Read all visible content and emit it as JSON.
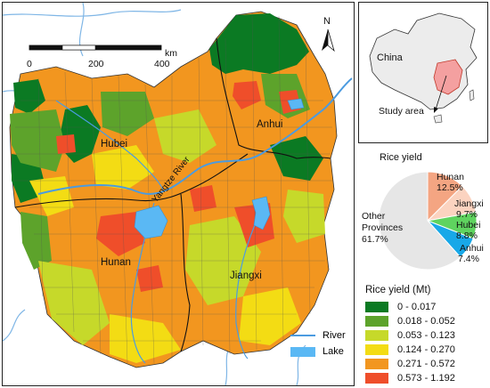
{
  "map": {
    "scale_bar": {
      "ticks": [
        "0",
        "200",
        "400"
      ],
      "unit": "km"
    },
    "north_label": "N",
    "provinces": [
      {
        "name": "Hubei"
      },
      {
        "name": "Anhui"
      },
      {
        "name": "Hunan"
      },
      {
        "name": "Jiangxi"
      }
    ],
    "river_label": "Yangtze River"
  },
  "inset": {
    "country_label": "China",
    "study_label": "Study area"
  },
  "chart_data": {
    "type": "pie",
    "title": "Rice yield",
    "slices": [
      {
        "name": "Hunan",
        "value": 12.5,
        "label": "12.5%",
        "color": "#f4a582"
      },
      {
        "name": "Jiangxi",
        "value": 9.7,
        "label": "9.7%",
        "color": "#fbd3c0"
      },
      {
        "name": "Hubei",
        "value": 8.8,
        "label": "8.8%",
        "color": "#5fd35f"
      },
      {
        "name": "Anhui",
        "value": 7.4,
        "label": "7.4%",
        "color": "#18a8e8"
      },
      {
        "name": "Other Provinces",
        "value": 61.7,
        "label": "61.7%",
        "color": "#e6e6e6"
      }
    ]
  },
  "legend": {
    "title": "Rice yield (Mt)",
    "classes": [
      {
        "label": "0 - 0.017",
        "color": "#0b7a23"
      },
      {
        "label": "0.018 - 0.052",
        "color": "#5da32b"
      },
      {
        "label": "0.053 - 0.123",
        "color": "#c6d92a"
      },
      {
        "label": "0.124 - 0.270",
        "color": "#f3dc14"
      },
      {
        "label": "0.271 -  0.572",
        "color": "#f2961f"
      },
      {
        "label": "0.573 - 1.192",
        "color": "#ef4e2a"
      }
    ],
    "river_label": "River",
    "lake_label": "Lake",
    "river_color": "#4b9be0",
    "lake_color": "#5ab8f4"
  }
}
